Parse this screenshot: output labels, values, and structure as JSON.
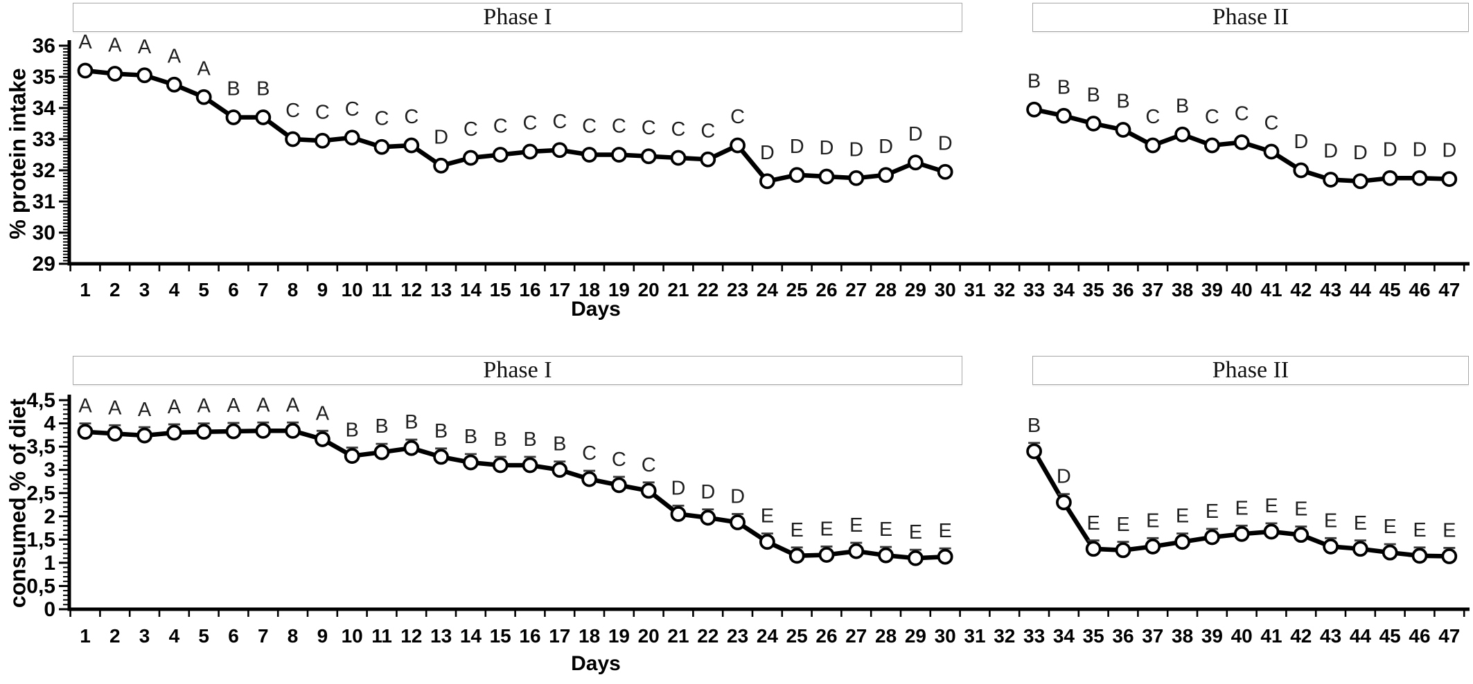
{
  "figure": {
    "background": "#ffffff",
    "line_color": "#000000",
    "marker_fill": "#ffffff",
    "phase_box_border": "#a6a6a6",
    "annotation_color": "#1f1f1f",
    "error_bar_color": "#3c3c3c"
  },
  "chart_data": [
    {
      "type": "line",
      "phase_labels": [
        "Phase I",
        "Phase II"
      ],
      "ylabel": "% protein intake",
      "xlabel": "Days",
      "ylim": [
        29,
        36
      ],
      "grid": false,
      "legend": null,
      "marker": "open-circle",
      "error_bars": false,
      "error_size": 0,
      "ytick_values": [
        29,
        30,
        31,
        32,
        33,
        34,
        35,
        36
      ],
      "ytick_labels": [
        "29",
        "30",
        "31",
        "32",
        "33",
        "34",
        "35",
        "36"
      ],
      "xtick_labels": [
        "1",
        "2",
        "3",
        "4",
        "5",
        "6",
        "7",
        "8",
        "9",
        "10",
        "11",
        "12",
        "13",
        "14",
        "15",
        "16",
        "17",
        "18",
        "19",
        "20",
        "21",
        "22",
        "23",
        "24",
        "25",
        "26",
        "27",
        "28",
        "29",
        "30",
        "31",
        "32",
        "33",
        "34",
        "35",
        "36",
        "37",
        "38",
        "39",
        "40",
        "41",
        "42",
        "43",
        "44",
        "45",
        "46",
        "47"
      ],
      "series": [
        {
          "name": "% protein intake",
          "x": [
            1,
            2,
            3,
            4,
            5,
            6,
            7,
            8,
            9,
            10,
            11,
            12,
            13,
            14,
            15,
            16,
            17,
            18,
            19,
            20,
            21,
            22,
            23,
            24,
            25,
            26,
            27,
            28,
            29,
            30,
            33,
            34,
            35,
            36,
            37,
            38,
            39,
            40,
            41,
            42,
            43,
            44,
            45,
            46,
            47
          ],
          "y": [
            35.2,
            35.1,
            35.05,
            34.75,
            34.35,
            33.7,
            33.7,
            33.0,
            32.95,
            33.05,
            32.75,
            32.8,
            32.15,
            32.4,
            32.5,
            32.6,
            32.65,
            32.5,
            32.5,
            32.45,
            32.4,
            32.35,
            32.8,
            31.65,
            31.85,
            31.8,
            31.75,
            31.85,
            32.25,
            31.95,
            33.95,
            33.75,
            33.5,
            33.3,
            32.8,
            33.15,
            32.8,
            32.9,
            32.6,
            32.0,
            31.7,
            31.65,
            31.75,
            31.75,
            31.72
          ],
          "letters": [
            "A",
            "A",
            "A",
            "A",
            "A",
            "B",
            "B",
            "C",
            "C",
            "C",
            "C",
            "C",
            "D",
            "C",
            "C",
            "C",
            "C",
            "C",
            "C",
            "C",
            "C",
            "C",
            "C",
            "D",
            "D",
            "D",
            "D",
            "D",
            "D",
            "D",
            "B",
            "B",
            "B",
            "B",
            "C",
            "B",
            "C",
            "C",
            "C",
            "D",
            "D",
            "D",
            "D",
            "D",
            "D"
          ]
        }
      ]
    },
    {
      "type": "line",
      "phase_labels": [
        "Phase I",
        "Phase II"
      ],
      "ylabel": "consumed % of diet",
      "xlabel": "Days",
      "ylim": [
        0,
        4.5
      ],
      "grid": false,
      "legend": null,
      "marker": "open-circle",
      "error_bars": true,
      "error_size": 0.18,
      "ytick_values": [
        0,
        0.5,
        1,
        1.5,
        2,
        2.5,
        3,
        3.5,
        4,
        4.5
      ],
      "ytick_labels": [
        "0",
        "0,5",
        "1",
        "1,5",
        "2",
        "2,5",
        "3",
        "3,5",
        "4",
        "4,5"
      ],
      "xtick_labels": [
        "1",
        "2",
        "3",
        "4",
        "5",
        "6",
        "7",
        "8",
        "9",
        "10",
        "11",
        "12",
        "13",
        "14",
        "15",
        "16",
        "17",
        "18",
        "19",
        "20",
        "21",
        "22",
        "23",
        "24",
        "25",
        "26",
        "27",
        "28",
        "29",
        "30",
        "31",
        "32",
        "33",
        "34",
        "35",
        "36",
        "37",
        "38",
        "39",
        "40",
        "41",
        "42",
        "43",
        "44",
        "45",
        "46",
        "47"
      ],
      "series": [
        {
          "name": "consumed % of diet",
          "x": [
            1,
            2,
            3,
            4,
            5,
            6,
            7,
            8,
            9,
            10,
            11,
            12,
            13,
            14,
            15,
            16,
            17,
            18,
            19,
            20,
            21,
            22,
            23,
            24,
            25,
            26,
            27,
            28,
            29,
            30,
            33,
            34,
            35,
            36,
            37,
            38,
            39,
            40,
            41,
            42,
            43,
            44,
            45,
            46,
            47
          ],
          "y": [
            3.82,
            3.78,
            3.74,
            3.8,
            3.82,
            3.83,
            3.84,
            3.84,
            3.66,
            3.3,
            3.38,
            3.47,
            3.28,
            3.16,
            3.1,
            3.1,
            3.0,
            2.8,
            2.67,
            2.55,
            2.05,
            1.97,
            1.87,
            1.45,
            1.15,
            1.17,
            1.25,
            1.16,
            1.1,
            1.13,
            3.4,
            2.3,
            1.3,
            1.27,
            1.35,
            1.45,
            1.55,
            1.62,
            1.67,
            1.6,
            1.35,
            1.3,
            1.22,
            1.15,
            1.14
          ],
          "letters": [
            "A",
            "A",
            "A",
            "A",
            "A",
            "A",
            "A",
            "A",
            "A",
            "B",
            "B",
            "B",
            "B",
            "B",
            "B",
            "B",
            "B",
            "C",
            "C",
            "C",
            "D",
            "D",
            "D",
            "E",
            "E",
            "E",
            "E",
            "E",
            "E",
            "E",
            "B",
            "D",
            "E",
            "E",
            "E",
            "E",
            "E",
            "E",
            "E",
            "E",
            "E",
            "E",
            "E",
            "E",
            "E"
          ]
        }
      ]
    }
  ]
}
